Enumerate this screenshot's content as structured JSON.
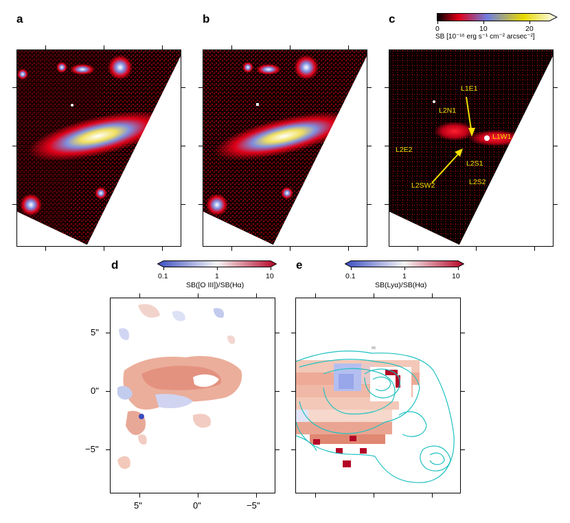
{
  "panels": {
    "a": {
      "label": "a"
    },
    "b": {
      "label": "b"
    },
    "c": {
      "label": "c",
      "annotations": {
        "l1e1": "L1E1",
        "l2n1": "L2N1",
        "l1w1": "L1W1",
        "l2e2": "L2E2",
        "l2s1": "L2S1",
        "l2sw2": "L2SW2",
        "l2s2": "L2S2"
      }
    },
    "d": {
      "label": "d"
    },
    "e": {
      "label": "e"
    }
  },
  "colorbar_sb": {
    "title": "SB [10⁻¹⁶ erg s⁻¹ cm⁻² arcsec⁻²]",
    "ticks": [
      "0",
      "10",
      "20"
    ],
    "colors": [
      "#000000",
      "#e00018",
      "#6f7fe0",
      "#e8d800",
      "#ffffff"
    ]
  },
  "colorbar_oiii": {
    "title": "SB([O III])/SB(Hα)",
    "ticks": [
      "0.1",
      "1",
      "10"
    ],
    "colors": [
      "#3b4cc0",
      "#ffffff",
      "#b40426"
    ]
  },
  "colorbar_lya": {
    "title": "SB(Lyα)/SB(Hα)",
    "ticks": [
      "0.1",
      "1",
      "10"
    ],
    "colors": [
      "#3b4cc0",
      "#ffffff",
      "#b40426"
    ]
  },
  "axis_d": {
    "y_ticks": [
      "5\"",
      "0\"",
      "−5\""
    ],
    "x_ticks": [
      "5\"",
      "0\"",
      "−5\""
    ]
  },
  "contour_color": "#1fc0c0"
}
